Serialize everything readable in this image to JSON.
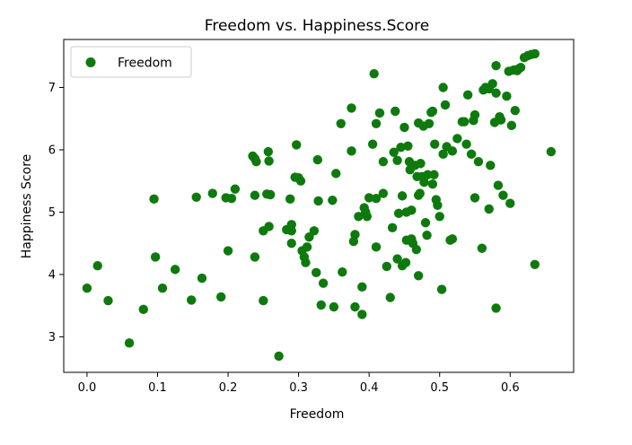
{
  "chart_data": {
    "type": "scatter",
    "title": "Freedom vs. Happiness.Score",
    "xlabel": "Freedom",
    "ylabel": "Happiness Score",
    "xlim": [
      -0.033,
      0.69
    ],
    "ylim": [
      2.43,
      7.77
    ],
    "xticks": [
      "0.0",
      "0.1",
      "0.2",
      "0.3",
      "0.4",
      "0.5",
      "0.6"
    ],
    "yticks": [
      "3",
      "4",
      "5",
      "6",
      "7"
    ],
    "grid": false,
    "legend_position": "upper-left",
    "series": [
      {
        "name": "Freedom",
        "color": "#0e7a0e",
        "points": [
          [
            0.0,
            3.78
          ],
          [
            0.015,
            4.14
          ],
          [
            0.03,
            3.58
          ],
          [
            0.06,
            2.9
          ],
          [
            0.08,
            3.44
          ],
          [
            0.095,
            5.21
          ],
          [
            0.097,
            4.28
          ],
          [
            0.107,
            3.78
          ],
          [
            0.125,
            4.08
          ],
          [
            0.148,
            3.59
          ],
          [
            0.155,
            5.24
          ],
          [
            0.163,
            3.94
          ],
          [
            0.178,
            5.3
          ],
          [
            0.19,
            3.64
          ],
          [
            0.197,
            5.23
          ],
          [
            0.2,
            4.38
          ],
          [
            0.205,
            5.22
          ],
          [
            0.21,
            5.37
          ],
          [
            0.235,
            5.9
          ],
          [
            0.238,
            5.86
          ],
          [
            0.238,
            5.27
          ],
          [
            0.238,
            4.28
          ],
          [
            0.24,
            5.81
          ],
          [
            0.25,
            4.7
          ],
          [
            0.25,
            3.58
          ],
          [
            0.255,
            5.29
          ],
          [
            0.257,
            5.97
          ],
          [
            0.258,
            5.82
          ],
          [
            0.258,
            4.77
          ],
          [
            0.26,
            5.28
          ],
          [
            0.272,
            2.69
          ],
          [
            0.283,
            4.72
          ],
          [
            0.288,
            5.21
          ],
          [
            0.29,
            4.8
          ],
          [
            0.29,
            4.7
          ],
          [
            0.29,
            4.5
          ],
          [
            0.295,
            5.56
          ],
          [
            0.297,
            6.08
          ],
          [
            0.3,
            5.55
          ],
          [
            0.303,
            5.5
          ],
          [
            0.305,
            4.38
          ],
          [
            0.308,
            4.28
          ],
          [
            0.31,
            4.19
          ],
          [
            0.312,
            4.44
          ],
          [
            0.315,
            4.6
          ],
          [
            0.322,
            4.7
          ],
          [
            0.325,
            4.03
          ],
          [
            0.327,
            5.84
          ],
          [
            0.328,
            5.18
          ],
          [
            0.332,
            3.51
          ],
          [
            0.335,
            3.86
          ],
          [
            0.348,
            5.19
          ],
          [
            0.35,
            3.48
          ],
          [
            0.353,
            5.62
          ],
          [
            0.36,
            6.42
          ],
          [
            0.362,
            4.04
          ],
          [
            0.375,
            6.67
          ],
          [
            0.375,
            5.98
          ],
          [
            0.378,
            4.53
          ],
          [
            0.38,
            4.64
          ],
          [
            0.38,
            3.48
          ],
          [
            0.385,
            4.93
          ],
          [
            0.39,
            3.36
          ],
          [
            0.39,
            3.8
          ],
          [
            0.393,
            5.07
          ],
          [
            0.395,
            5.0
          ],
          [
            0.397,
            4.93
          ],
          [
            0.4,
            5.23
          ],
          [
            0.405,
            6.09
          ],
          [
            0.407,
            7.22
          ],
          [
            0.41,
            6.42
          ],
          [
            0.41,
            5.22
          ],
          [
            0.41,
            4.44
          ],
          [
            0.415,
            6.59
          ],
          [
            0.42,
            5.3
          ],
          [
            0.42,
            5.81
          ],
          [
            0.425,
            4.13
          ],
          [
            0.43,
            3.63
          ],
          [
            0.433,
            4.75
          ],
          [
            0.435,
            5.96
          ],
          [
            0.437,
            6.62
          ],
          [
            0.44,
            5.83
          ],
          [
            0.44,
            4.25
          ],
          [
            0.442,
            4.98
          ],
          [
            0.445,
            6.04
          ],
          [
            0.447,
            5.26
          ],
          [
            0.447,
            4.14
          ],
          [
            0.45,
            6.36
          ],
          [
            0.452,
            4.19
          ],
          [
            0.453,
            5.0
          ],
          [
            0.453,
            4.55
          ],
          [
            0.455,
            6.06
          ],
          [
            0.457,
            5.81
          ],
          [
            0.458,
            5.68
          ],
          [
            0.46,
            5.03
          ],
          [
            0.46,
            4.57
          ],
          [
            0.462,
            4.5
          ],
          [
            0.465,
            5.75
          ],
          [
            0.467,
            4.4
          ],
          [
            0.468,
            5.57
          ],
          [
            0.47,
            6.43
          ],
          [
            0.47,
            5.27
          ],
          [
            0.47,
            3.98
          ],
          [
            0.472,
            5.3
          ],
          [
            0.473,
            5.78
          ],
          [
            0.475,
            5.57
          ],
          [
            0.477,
            6.38
          ],
          [
            0.478,
            5.48
          ],
          [
            0.48,
            4.83
          ],
          [
            0.482,
            4.63
          ],
          [
            0.483,
            5.6
          ],
          [
            0.485,
            6.42
          ],
          [
            0.488,
            6.6
          ],
          [
            0.49,
            6.62
          ],
          [
            0.49,
            5.45
          ],
          [
            0.492,
            5.6
          ],
          [
            0.493,
            6.09
          ],
          [
            0.495,
            5.2
          ],
          [
            0.497,
            5.11
          ],
          [
            0.5,
            4.93
          ],
          [
            0.503,
            3.76
          ],
          [
            0.505,
            7.0
          ],
          [
            0.505,
            5.93
          ],
          [
            0.508,
            6.72
          ],
          [
            0.51,
            6.05
          ],
          [
            0.515,
            4.55
          ],
          [
            0.518,
            4.57
          ],
          [
            0.518,
            5.98
          ],
          [
            0.525,
            6.18
          ],
          [
            0.532,
            6.45
          ],
          [
            0.535,
            6.45
          ],
          [
            0.538,
            6.09
          ],
          [
            0.54,
            6.88
          ],
          [
            0.545,
            5.93
          ],
          [
            0.548,
            6.47
          ],
          [
            0.55,
            5.23
          ],
          [
            0.55,
            6.56
          ],
          [
            0.555,
            5.81
          ],
          [
            0.56,
            4.42
          ],
          [
            0.562,
            6.96
          ],
          [
            0.565,
            7.0
          ],
          [
            0.57,
            6.98
          ],
          [
            0.57,
            5.05
          ],
          [
            0.572,
            5.75
          ],
          [
            0.575,
            7.06
          ],
          [
            0.578,
            6.44
          ],
          [
            0.58,
            7.35
          ],
          [
            0.58,
            6.91
          ],
          [
            0.58,
            3.46
          ],
          [
            0.583,
            5.43
          ],
          [
            0.585,
            6.53
          ],
          [
            0.587,
            6.48
          ],
          [
            0.59,
            5.27
          ],
          [
            0.595,
            6.86
          ],
          [
            0.598,
            7.26
          ],
          [
            0.6,
            5.14
          ],
          [
            0.602,
            6.39
          ],
          [
            0.605,
            7.28
          ],
          [
            0.607,
            6.63
          ],
          [
            0.61,
            7.27
          ],
          [
            0.612,
            7.3
          ],
          [
            0.615,
            7.32
          ],
          [
            0.62,
            7.48
          ],
          [
            0.625,
            7.51
          ],
          [
            0.63,
            7.53
          ],
          [
            0.635,
            7.54
          ],
          [
            0.635,
            4.16
          ],
          [
            0.658,
            5.97
          ]
        ]
      }
    ]
  }
}
